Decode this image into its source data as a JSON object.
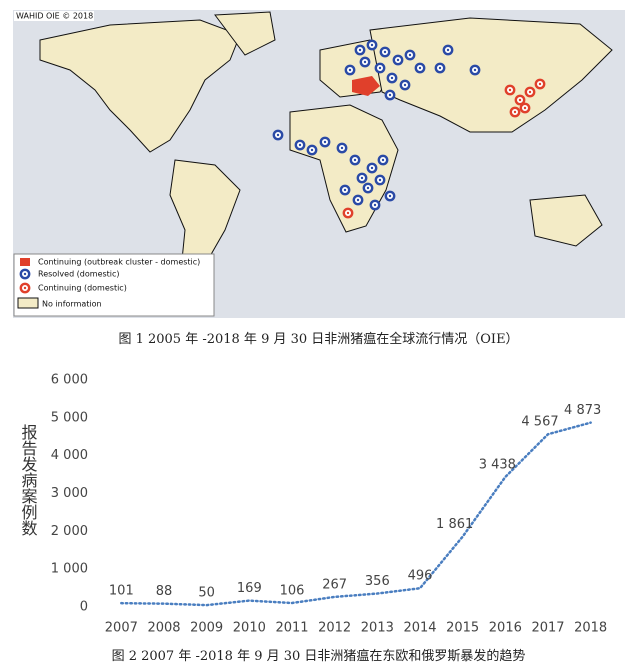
{
  "map_figure": {
    "credit": "WAHID OIE © 2018",
    "legend": [
      "Continuing (outbreak cluster - domestic)",
      "Resolved (domestic)",
      "Continuing (domestic)",
      "No information"
    ],
    "caption": "图 1 2005 年 -2018 年 9 月 30 日非洲猪瘟在全球流行情况（OIE）"
  },
  "chart_data": {
    "type": "line",
    "caption": "图 2 2007 年 -2018 年 9 月 30 日非洲猪瘟在东欧和俄罗斯暴发的趋势",
    "y_label": "报告发病案例数",
    "categories": [
      "2007",
      "2008",
      "2009",
      "2010",
      "2011",
      "2012",
      "2013",
      "2014",
      "2015",
      "2016",
      "2017",
      "2018"
    ],
    "values": [
      101,
      88,
      50,
      169,
      106,
      267,
      356,
      496,
      1861,
      3438,
      4567,
      4873
    ],
    "value_labels": [
      "101",
      "88",
      "50",
      "169",
      "106",
      "267",
      "356",
      "496",
      "1 861",
      "3 438",
      "4 567",
      "4 873"
    ],
    "color": "#4a7ec0",
    "ylim": [
      0,
      6000
    ],
    "yticks": [
      0,
      {
        "value": 1000,
        "label": "1 000"
      },
      {
        "value": 2000,
        "label": "2 000"
      },
      {
        "value": 3000,
        "label": "3 000"
      },
      {
        "value": 4000,
        "label": "4 000"
      },
      {
        "value": 5000,
        "label": "5 000"
      },
      {
        "value": 6000,
        "label": "6 000"
      }
    ],
    "grid": false
  }
}
